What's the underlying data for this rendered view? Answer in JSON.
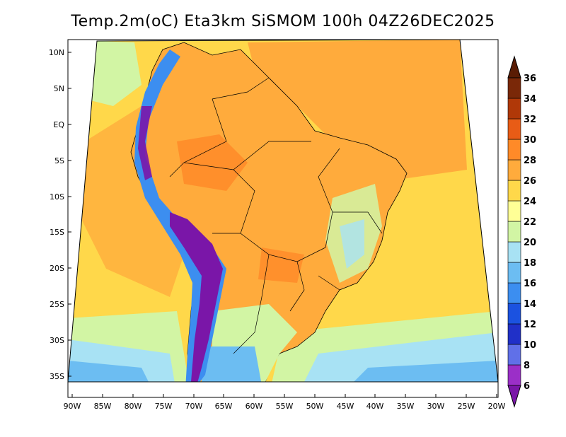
{
  "title": "Temp.2m(oC) Eta3km SiSMOM 100h 04Z26DEC2025",
  "map": {
    "lat_labels": [
      "10N",
      "5N",
      "EQ",
      "5S",
      "10S",
      "15S",
      "20S",
      "25S",
      "30S",
      "35S"
    ],
    "lon_labels": [
      "90W",
      "85W",
      "80W",
      "75W",
      "70W",
      "65W",
      "60W",
      "55W",
      "50W",
      "45W",
      "40W",
      "35W",
      "30W",
      "25W",
      "20W"
    ]
  },
  "colorbar": {
    "levels": [
      "6",
      "8",
      "10",
      "12",
      "14",
      "16",
      "18",
      "20",
      "22",
      "24",
      "26",
      "28",
      "30",
      "32",
      "34",
      "36"
    ],
    "colors": [
      "#7a16a8",
      "#9b2fc8",
      "#6070e8",
      "#2030c8",
      "#1b52e0",
      "#3c8ef0",
      "#6cbdf2",
      "#a8e2f4",
      "#d2f5a4",
      "#ffff96",
      "#ffd84a",
      "#ffab3c",
      "#ff8a28",
      "#e85c16",
      "#b03808",
      "#7a2808",
      "#5a1c04"
    ]
  },
  "colors": {
    "ocean_warm": "#ffd84a",
    "ocean_cool": "#d2f5a4",
    "land": "#ffab3c",
    "border": "#000000"
  }
}
